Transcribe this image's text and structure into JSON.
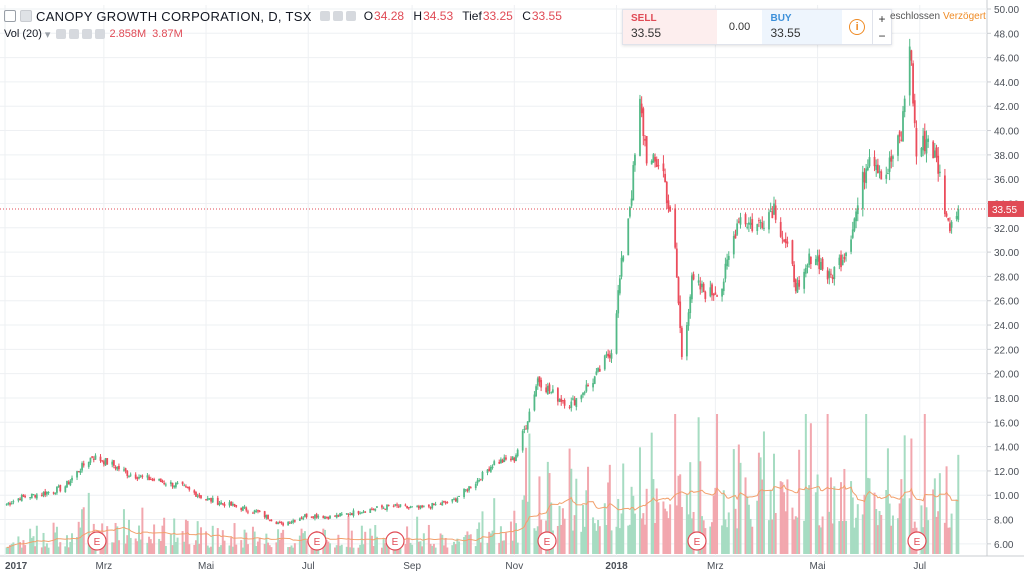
{
  "header": {
    "symbol": "CANOPY GROWTH CORPORATION, D, TSX",
    "open_label": "O",
    "open": "34.28",
    "high_label": "H",
    "high": "34.53",
    "low_label": "Tief",
    "low": "33.25",
    "close_label": "C",
    "close": "33.55",
    "volume_label": "Vol (20)",
    "volume_value": "2.858M",
    "volume_ma": "3.87M"
  },
  "trade_panel": {
    "sell_label": "SELL",
    "sell_price": "33.55",
    "spread": "0.00",
    "buy_label": "BUY",
    "buy_price": "33.55",
    "info_icon": "i",
    "plus": "+",
    "minus": "−"
  },
  "status": {
    "market": "eschlossen",
    "delay": "Verzögert"
  },
  "colors": {
    "up": "#53b987",
    "down": "#eb4d5c",
    "vol_up": "#a6dcc2",
    "vol_down": "#f2a7ae",
    "ma": "#f2a06c",
    "grid": "#eef0f3",
    "price_line": "#e04a55"
  },
  "chart_data": {
    "type": "candlestick",
    "title": "CANOPY GROWTH CORPORATION, D, TSX",
    "ylim": [
      5,
      50
    ],
    "y_ticks": [
      "6.00",
      "8.00",
      "10.00",
      "12.00",
      "14.00",
      "16.00",
      "18.00",
      "20.00",
      "22.00",
      "24.00",
      "26.00",
      "28.00",
      "30.00",
      "32.00",
      "34.00",
      "36.00",
      "38.00",
      "40.00",
      "42.00",
      "44.00",
      "46.00",
      "48.00",
      "50.00"
    ],
    "x_tick_labels": [
      "2017",
      "Mrz",
      "Mai",
      "Jul",
      "Sep",
      "Nov",
      "2018",
      "Mrz",
      "Mai",
      "Jul"
    ],
    "last_price": "33.55",
    "earnings_markers": [
      "E",
      "E",
      "E",
      "E",
      "E",
      "E",
      "E"
    ],
    "price_path": [
      [
        "2017-01-01",
        9.2
      ],
      [
        "2017-01-10",
        9.8
      ],
      [
        "2017-01-25",
        10.2
      ],
      [
        "2017-02-05",
        10.6
      ],
      [
        "2017-02-15",
        12.2
      ],
      [
        "2017-02-22",
        13.2
      ],
      [
        "2017-03-05",
        12.6
      ],
      [
        "2017-03-15",
        11.8
      ],
      [
        "2017-04-01",
        11.2
      ],
      [
        "2017-04-15",
        10.8
      ],
      [
        "2017-05-01",
        9.7
      ],
      [
        "2017-05-15",
        9.2
      ],
      [
        "2017-06-01",
        8.6
      ],
      [
        "2017-06-15",
        7.6
      ],
      [
        "2017-07-01",
        8.4
      ],
      [
        "2017-07-15",
        8.2
      ],
      [
        "2017-08-01",
        8.7
      ],
      [
        "2017-08-20",
        9.1
      ],
      [
        "2017-09-05",
        8.9
      ],
      [
        "2017-09-25",
        9.5
      ],
      [
        "2017-10-10",
        11.2
      ],
      [
        "2017-10-20",
        12.7
      ],
      [
        "2017-11-01",
        13.0
      ],
      [
        "2017-11-08",
        15.8
      ],
      [
        "2017-11-15",
        19.6
      ],
      [
        "2017-11-25",
        18.2
      ],
      [
        "2017-12-05",
        17.5
      ],
      [
        "2017-12-20",
        19.8
      ],
      [
        "2017-12-29",
        22.0
      ],
      [
        "2018-01-05",
        30.0
      ],
      [
        "2018-01-10",
        35.0
      ],
      [
        "2018-01-15",
        42.0
      ],
      [
        "2018-01-20",
        37.0
      ],
      [
        "2018-01-28",
        37.5
      ],
      [
        "2018-02-05",
        30.0
      ],
      [
        "2018-02-09",
        21.5
      ],
      [
        "2018-02-15",
        27.5
      ],
      [
        "2018-02-25",
        26.5
      ],
      [
        "2018-03-05",
        27.2
      ],
      [
        "2018-03-15",
        33.0
      ],
      [
        "2018-03-25",
        32.0
      ],
      [
        "2018-04-05",
        33.8
      ],
      [
        "2018-04-12",
        30.5
      ],
      [
        "2018-04-20",
        26.5
      ],
      [
        "2018-04-28",
        30.2
      ],
      [
        "2018-05-08",
        27.8
      ],
      [
        "2018-05-18",
        30.2
      ],
      [
        "2018-05-25",
        33.8
      ],
      [
        "2018-06-01",
        38.5
      ],
      [
        "2018-06-10",
        36.2
      ],
      [
        "2018-06-20",
        39.5
      ],
      [
        "2018-06-25",
        47.5
      ],
      [
        "2018-06-29",
        38.0
      ],
      [
        "2018-07-06",
        39.5
      ],
      [
        "2018-07-12",
        37.0
      ],
      [
        "2018-07-18",
        32.2
      ],
      [
        "2018-07-24",
        33.55
      ]
    ]
  }
}
